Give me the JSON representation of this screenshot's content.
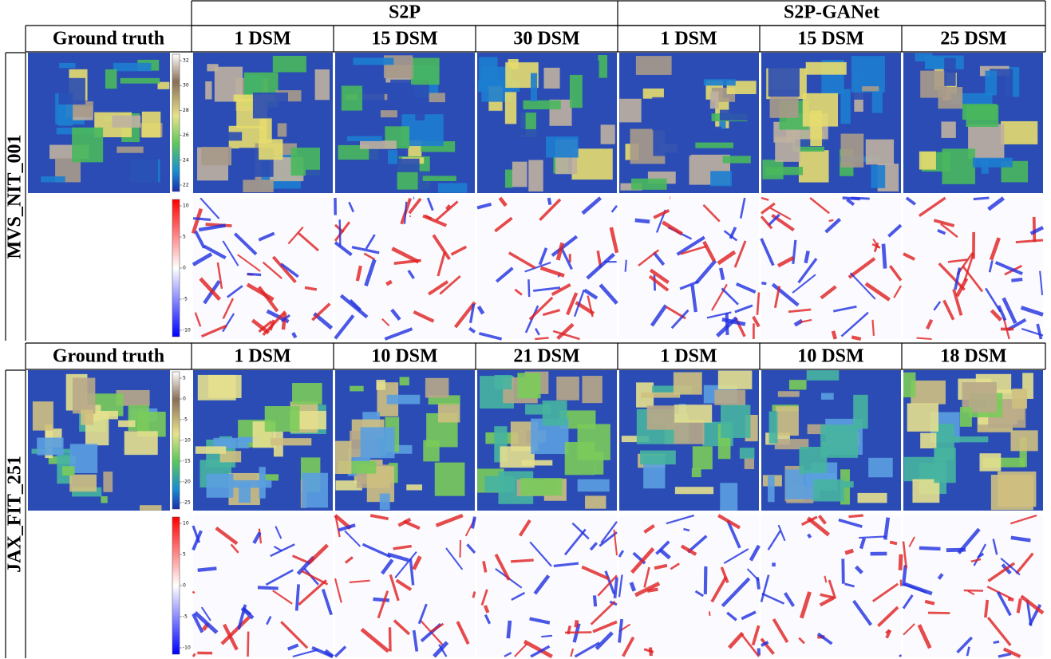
{
  "header": {
    "groups": [
      "S2P",
      "S2P-GANet"
    ]
  },
  "blocks": [
    {
      "name": "MVS_NIT_001",
      "columns": [
        "Ground truth",
        "1 DSM",
        "15 DSM",
        "30 DSM",
        "1 DSM",
        "15 DSM",
        "25 DSM"
      ],
      "height_colorbar_ticks": [
        32,
        30,
        28,
        26,
        24,
        22
      ],
      "error_colorbar_ticks": [
        10,
        5,
        0,
        -5,
        -10
      ]
    },
    {
      "name": "JAX_FIT_251",
      "columns": [
        "Ground truth",
        "1 DSM",
        "10 DSM",
        "21 DSM",
        "1 DSM",
        "10 DSM",
        "18 DSM"
      ],
      "height_colorbar_ticks": [
        5,
        0,
        -5,
        -10,
        -15,
        -20,
        -25
      ],
      "error_colorbar_ticks": [
        10,
        5,
        0,
        -5,
        -10
      ]
    }
  ]
}
